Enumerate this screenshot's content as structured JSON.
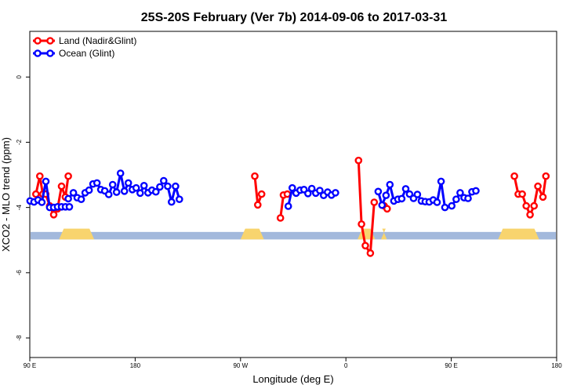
{
  "chart_data": {
    "type": "line",
    "title": "25S-20S February (Ver 7b)   2014-09-06 to 2017-03-31",
    "xlabel": "Longitude (deg E)",
    "ylabel": "XCO2 - MLO trend (ppm)",
    "x_ticks": [
      {
        "value": 90,
        "label": "90 E"
      },
      {
        "value": 180,
        "label": "180"
      },
      {
        "value": 270,
        "label": "90 W"
      },
      {
        "value": 360,
        "label": "0"
      },
      {
        "value": 450,
        "label": "90 E"
      },
      {
        "value": 540,
        "label": "180"
      }
    ],
    "y_ticks": [
      {
        "value": 0,
        "label": "0"
      },
      {
        "value": -2,
        "label": "-2"
      },
      {
        "value": -4,
        "label": "-4"
      },
      {
        "value": -6,
        "label": "-6"
      },
      {
        "value": -8,
        "label": "-8"
      }
    ],
    "xlim": [
      90,
      540
    ],
    "ylim": [
      -8.6,
      1.4
    ],
    "grid": false,
    "legend_position": "top-left",
    "series": [
      {
        "name": "Land (Nadir&Glint)",
        "color": "#ff0000",
        "segments": [
          [
            [
              95.2,
              -3.59
            ],
            [
              98.6,
              -3.04
            ],
            [
              101.1,
              -3.59
            ],
            [
              103.6,
              -3.59
            ],
            [
              107.0,
              -3.95
            ],
            [
              110.4,
              -4.22
            ],
            [
              113.7,
              -4.04
            ],
            [
              117.1,
              -3.35
            ],
            [
              120.4,
              -3.68
            ],
            [
              122.9,
              -3.04
            ]
          ],
          [
            [
              282.2,
              -3.04
            ],
            [
              284.7,
              -3.92
            ],
            [
              288.0,
              -3.59
            ]
          ],
          [
            [
              304.1,
              -4.32
            ],
            [
              306.6,
              -3.62
            ],
            [
              310.0,
              -3.59
            ]
          ],
          [
            [
              370.8,
              -2.56
            ],
            [
              373.3,
              -4.51
            ],
            [
              376.6,
              -5.17
            ],
            [
              380.9,
              -5.4
            ],
            [
              384.2,
              -3.84
            ]
          ],
          [
            [
              392.7,
              -3.95
            ],
            [
              395.2,
              -4.04
            ]
          ],
          [
            [
              503.9,
              -3.04
            ],
            [
              507.2,
              -3.59
            ],
            [
              510.6,
              -3.59
            ],
            [
              514.0,
              -3.95
            ],
            [
              517.3,
              -4.22
            ],
            [
              520.7,
              -3.95
            ],
            [
              524.0,
              -3.35
            ],
            [
              528.3,
              -3.68
            ],
            [
              530.8,
              -3.04
            ]
          ]
        ]
      },
      {
        "name": "Ocean (Glint)",
        "color": "#0000ff",
        "segments": [
          [
            [
              90.3,
              -3.8
            ],
            [
              93.6,
              -3.83
            ],
            [
              97.0,
              -3.77
            ],
            [
              100.3,
              -3.84
            ],
            [
              103.7,
              -3.2
            ],
            [
              107.0,
              -4.0
            ],
            [
              110.4,
              -4.0
            ],
            [
              113.7,
              -3.98
            ],
            [
              117.1,
              -3.98
            ],
            [
              120.5,
              -3.98
            ],
            [
              123.8,
              -3.98
            ]
          ],
          [
            [
              122.9,
              -3.73
            ],
            [
              127.2,
              -3.55
            ],
            [
              130.5,
              -3.7
            ],
            [
              133.9,
              -3.75
            ],
            [
              137.3,
              -3.55
            ],
            [
              140.6,
              -3.47
            ],
            [
              144.0,
              -3.28
            ],
            [
              147.4,
              -3.25
            ],
            [
              150.7,
              -3.45
            ],
            [
              154.0,
              -3.49
            ],
            [
              157.4,
              -3.6
            ],
            [
              160.8,
              -3.3
            ],
            [
              164.1,
              -3.53
            ],
            [
              167.5,
              -2.95
            ],
            [
              170.8,
              -3.5
            ],
            [
              174.2,
              -3.25
            ],
            [
              177.6,
              -3.45
            ],
            [
              180.9,
              -3.4
            ],
            [
              184.3,
              -3.56
            ],
            [
              187.6,
              -3.33
            ],
            [
              191.0,
              -3.55
            ],
            [
              194.3,
              -3.47
            ],
            [
              197.7,
              -3.52
            ],
            [
              201.1,
              -3.37
            ],
            [
              204.4,
              -3.18
            ],
            [
              207.8,
              -3.35
            ],
            [
              211.1,
              -3.83
            ],
            [
              214.5,
              -3.35
            ],
            [
              217.8,
              -3.75
            ]
          ],
          [
            [
              310.8,
              -3.96
            ],
            [
              314.2,
              -3.4
            ],
            [
              317.5,
              -3.56
            ],
            [
              320.9,
              -3.47
            ],
            [
              324.2,
              -3.45
            ],
            [
              327.6,
              -3.57
            ],
            [
              330.9,
              -3.42
            ],
            [
              334.3,
              -3.56
            ],
            [
              337.7,
              -3.48
            ],
            [
              341.0,
              -3.63
            ],
            [
              344.4,
              -3.53
            ],
            [
              347.7,
              -3.62
            ],
            [
              351.1,
              -3.55
            ]
          ],
          [
            [
              387.6,
              -3.51
            ],
            [
              390.9,
              -3.93
            ],
            [
              394.3,
              -3.63
            ],
            [
              397.6,
              -3.3
            ],
            [
              401.0,
              -3.8
            ],
            [
              404.4,
              -3.75
            ],
            [
              407.7,
              -3.73
            ],
            [
              411.1,
              -3.43
            ],
            [
              414.4,
              -3.59
            ],
            [
              417.8,
              -3.72
            ],
            [
              421.1,
              -3.6
            ],
            [
              424.5,
              -3.8
            ],
            [
              427.8,
              -3.82
            ],
            [
              431.2,
              -3.83
            ],
            [
              434.6,
              -3.77
            ],
            [
              437.9,
              -3.84
            ],
            [
              441.3,
              -3.2
            ],
            [
              444.6,
              -4.0
            ]
          ],
          [
            [
              450.4,
              -3.95
            ],
            [
              454.2,
              -3.75
            ],
            [
              457.6,
              -3.55
            ],
            [
              461.0,
              -3.7
            ],
            [
              464.3,
              -3.72
            ],
            [
              467.7,
              -3.52
            ],
            [
              471.0,
              -3.49
            ]
          ]
        ]
      }
    ],
    "colors": {
      "ocean_band": "#a3b9dc",
      "land_band": "#f8d46e"
    },
    "land_band": [
      [
        115,
        145
      ],
      [
        270,
        290
      ],
      [
        370,
        385
      ],
      [
        390,
        395
      ],
      [
        490,
        525
      ]
    ]
  }
}
